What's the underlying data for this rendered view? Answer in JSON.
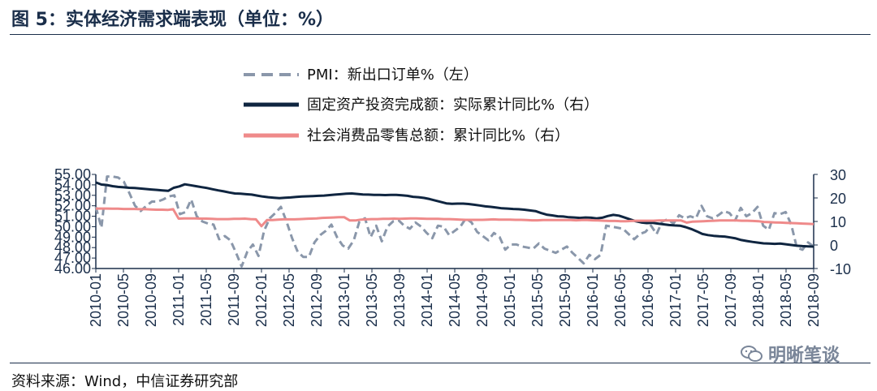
{
  "header": {
    "title": "图 5：实体经济需求端表现（单位：%）"
  },
  "footer": {
    "source": "资料来源：Wind，中信证券研究部",
    "watermark": "明晰笔谈"
  },
  "colors": {
    "pmi": "#8a97aa",
    "fai": "#0f2540",
    "retail": "#ef8a8a",
    "axis": "#1a2e4a"
  },
  "chart_data": {
    "type": "line",
    "x_ticks": [
      "2010-01",
      "2010-05",
      "2010-09",
      "2011-01",
      "2011-05",
      "2011-09",
      "2012-01",
      "2012-05",
      "2012-09",
      "2013-01",
      "2013-05",
      "2013-09",
      "2014-01",
      "2014-05",
      "2014-09",
      "2015-01",
      "2015-05",
      "2015-09",
      "2016-01",
      "2016-05",
      "2016-09",
      "2017-01",
      "2017-05",
      "2017-09",
      "2018-01",
      "2018-05",
      "2018-09"
    ],
    "left_axis": {
      "ylim": [
        46,
        55
      ],
      "ticks": [
        "55.00",
        "54.00",
        "53.00",
        "52.00",
        "51.00",
        "50.00",
        "49.00",
        "48.00",
        "47.00",
        "46.00"
      ]
    },
    "right_axis": {
      "ylim": [
        -10,
        30
      ],
      "ticks": [
        "30",
        "20",
        "10",
        "0",
        "-10"
      ]
    },
    "series": [
      {
        "name": "PMI：新出口订单%（左）",
        "axis": "left",
        "style": "dashed",
        "color": "#8a97aa",
        "values": [
          51.9,
          49.9,
          54.8,
          54.8,
          54.7,
          54.3,
          53.2,
          52.0,
          51.5,
          52.0,
          52.4,
          52.4,
          52.6,
          52.9,
          53.0,
          51.2,
          51.4,
          52.6,
          51.0,
          50.5,
          50.3,
          50.2,
          48.8,
          49.1,
          48.7,
          47.5,
          46.2,
          47.6,
          48.3,
          47.2,
          49.6,
          50.8,
          51.3,
          51.9,
          50.5,
          48.9,
          47.6,
          47.1,
          47.1,
          48.5,
          49.2,
          49.6,
          50.2,
          49.0,
          48.2,
          47.9,
          48.7,
          50.5,
          50.8,
          49.0,
          50.1,
          48.6,
          50.0,
          50.5,
          50.6,
          50.1,
          49.8,
          50.4,
          50.0,
          49.4,
          48.9,
          50.1,
          50.0,
          49.2,
          49.6,
          50.0,
          50.8,
          50.4,
          49.5,
          49.1,
          48.7,
          49.4,
          49.0,
          47.8,
          48.3,
          48.3,
          48.1,
          48.0,
          47.9,
          48.4,
          47.9,
          47.7,
          47.5,
          47.8,
          48.1,
          47.5,
          47.0,
          46.5,
          47.3,
          46.9,
          47.3,
          50.1,
          50.0,
          49.9,
          49.8,
          49.3,
          48.8,
          49.3,
          49.5,
          50.1,
          49.3,
          50.5,
          50.7,
          50.3,
          51.1,
          50.8,
          51.0,
          50.8,
          52.0,
          51.0,
          50.8,
          51.1,
          51.5,
          51.3,
          50.6,
          51.8,
          51.0,
          51.3,
          51.9,
          50.1,
          49.7,
          51.3,
          51.2,
          51.4,
          50.2,
          48.0,
          47.8,
          48.5,
          48.1
        ]
      },
      {
        "name": "固定资产投资完成额：实际累计同比%（右）",
        "axis": "right",
        "style": "solid",
        "color": "#0f2540",
        "values": [
          26.6,
          25.7,
          25.5,
          25.0,
          24.7,
          24.5,
          24.3,
          24.2,
          24.0,
          23.8,
          23.6,
          23.4,
          23.2,
          23.0,
          24.3,
          24.9,
          25.8,
          25.4,
          25.0,
          24.6,
          24.2,
          23.7,
          23.2,
          22.8,
          22.3,
          21.9,
          21.8,
          21.6,
          21.4,
          21.0,
          20.6,
          20.3,
          20.1,
          19.9,
          20.1,
          20.2,
          20.4,
          20.6,
          20.7,
          20.8,
          20.9,
          21.0,
          21.2,
          21.4,
          21.6,
          21.8,
          21.9,
          21.7,
          21.5,
          21.4,
          21.3,
          21.3,
          21.2,
          21.3,
          21.3,
          21.1,
          20.9,
          20.5,
          20.3,
          20.0,
          19.5,
          18.9,
          18.3,
          17.7,
          17.5,
          17.6,
          17.6,
          17.4,
          17.1,
          16.8,
          16.4,
          16.2,
          15.9,
          15.6,
          15.5,
          15.3,
          15.2,
          15.0,
          14.7,
          14.4,
          13.6,
          12.9,
          12.6,
          12.2,
          12.1,
          11.8,
          11.7,
          11.5,
          11.7,
          11.6,
          11.3,
          11.6,
          12.3,
          12.8,
          12.5,
          11.7,
          10.9,
          10.1,
          9.6,
          9.3,
          9.4,
          9.1,
          8.8,
          8.5,
          8.3,
          8.2,
          7.6,
          6.8,
          5.8,
          4.7,
          4.2,
          3.9,
          3.7,
          3.6,
          3.2,
          2.8,
          2.1,
          1.7,
          1.3,
          1.0,
          0.7,
          0.6,
          0.5,
          0.6,
          0.3,
          0.0,
          -0.3,
          -0.5,
          -0.6,
          -0.7
        ]
      },
      {
        "name": "社会消费品零售总额：累计同比%（右）",
        "axis": "right",
        "style": "solid",
        "color": "#ef8a8a",
        "values": [
          15.5,
          15.5,
          15.5,
          15.4,
          15.4,
          15.3,
          15.3,
          15.3,
          15.2,
          15.2,
          15.1,
          15.0,
          15.0,
          14.9,
          15.2,
          11.2,
          11.3,
          11.3,
          11.3,
          11.2,
          11.2,
          11.1,
          11.0,
          11.0,
          11.0,
          11.1,
          11.1,
          11.2,
          11.0,
          10.9,
          8.0,
          10.6,
          10.6,
          10.8,
          10.9,
          10.9,
          10.9,
          11.0,
          11.1,
          11.2,
          11.3,
          11.5,
          11.6,
          11.7,
          11.8,
          11.8,
          10.4,
          10.4,
          10.8,
          10.9,
          11.0,
          11.0,
          11.1,
          11.1,
          11.2,
          11.1,
          11.2,
          11.3,
          11.3,
          11.2,
          11.1,
          11.1,
          11.1,
          11.0,
          11.0,
          10.9,
          10.8,
          10.7,
          10.7,
          10.7,
          10.7,
          10.8,
          10.9,
          10.8,
          10.8,
          10.8,
          10.7,
          10.7,
          10.6,
          10.5,
          10.5,
          10.6,
          10.6,
          10.6,
          10.6,
          10.6,
          10.6,
          10.5,
          10.6,
          10.6,
          10.5,
          10.4,
          10.3,
          10.2,
          10.2,
          10.1,
          10.1,
          10.2,
          10.3,
          10.3,
          10.3,
          10.3,
          10.4,
          10.4,
          10.4,
          10.4,
          10.4,
          9.5,
          9.9,
          10.0,
          10.1,
          10.2,
          10.3,
          10.4,
          10.4,
          10.4,
          10.4,
          10.3,
          10.3,
          10.2,
          10.1,
          9.8,
          9.7,
          9.6,
          9.5,
          9.4,
          9.3,
          9.2,
          9.1,
          9.0,
          8.9
        ]
      }
    ],
    "legend_position": "top"
  }
}
